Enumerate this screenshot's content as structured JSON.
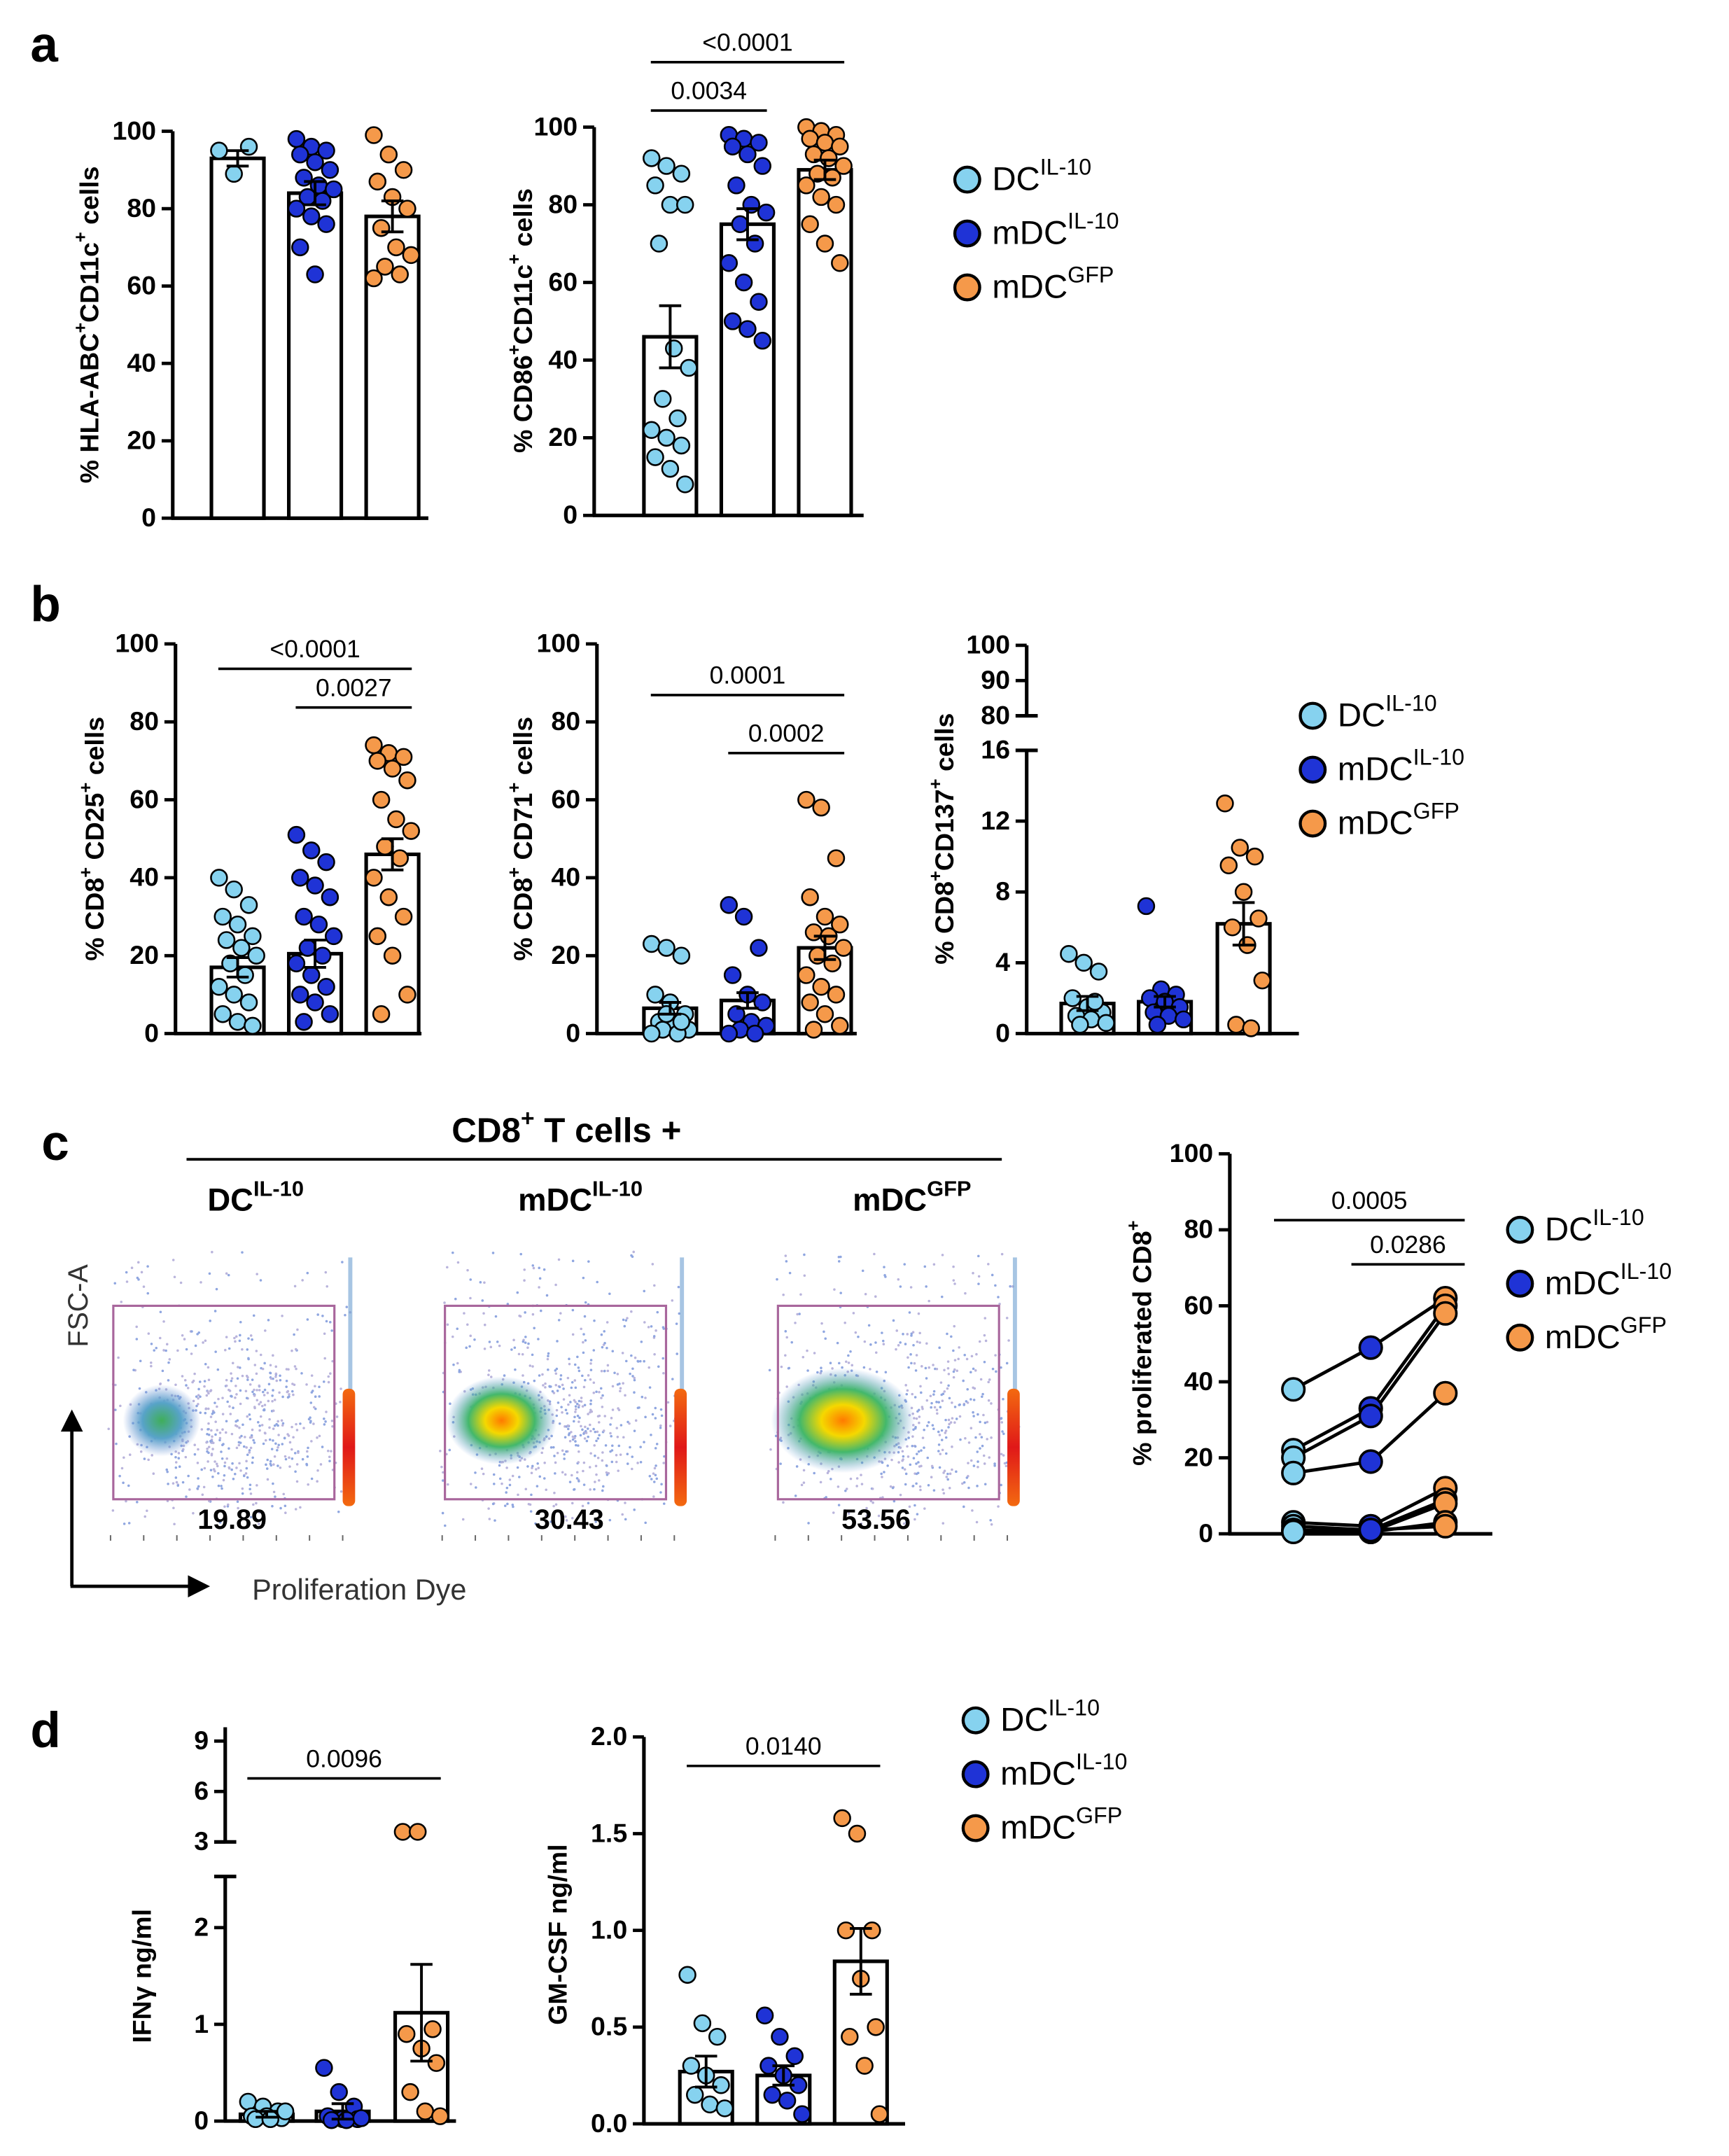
{
  "panels": [
    {
      "label": "a",
      "legend": [
        {
          "name": [
            "DC",
            {
              "sup": "IL-10"
            }
          ],
          "color": "#86d2ef"
        },
        {
          "name": [
            "mDC",
            {
              "sup": "IL-10"
            }
          ],
          "color": "#1f33d6"
        },
        {
          "name": [
            "mDC",
            {
              "sup": "GFP"
            }
          ],
          "color": "#f5994a"
        }
      ]
    },
    {
      "label": "b",
      "legend": [
        {
          "name": [
            "DC",
            {
              "sup": "IL-10"
            }
          ],
          "color": "#86d2ef"
        },
        {
          "name": [
            "mDC",
            {
              "sup": "IL-10"
            }
          ],
          "color": "#1f33d6"
        },
        {
          "name": [
            "mDC",
            {
              "sup": "GFP"
            }
          ],
          "color": "#f5994a"
        }
      ]
    },
    {
      "label": "c",
      "legend": [
        {
          "name": [
            "DC",
            {
              "sup": "IL-10"
            }
          ],
          "color": "#86d2ef"
        },
        {
          "name": [
            "mDC",
            {
              "sup": "IL-10"
            }
          ],
          "color": "#1f33d6"
        },
        {
          "name": [
            "mDC",
            {
              "sup": "GFP"
            }
          ],
          "color": "#f5994a"
        }
      ]
    },
    {
      "label": "d",
      "legend": [
        {
          "name": [
            "DC",
            {
              "sup": "IL-10"
            }
          ],
          "color": "#86d2ef"
        },
        {
          "name": [
            "mDC",
            {
              "sup": "IL-10"
            }
          ],
          "color": "#1f33d6"
        },
        {
          "name": [
            "mDC",
            {
              "sup": "GFP"
            }
          ],
          "color": "#f5994a"
        }
      ]
    }
  ],
  "flow": {
    "title": [
      "CD8",
      {
        "sup": "+"
      },
      " T cells +"
    ],
    "plots": [
      {
        "title": [
          "DC",
          {
            "sup": "IL-10"
          }
        ],
        "value": 19.89
      },
      {
        "title": [
          "mDC",
          {
            "sup": "IL-10"
          }
        ],
        "value": 30.43
      },
      {
        "title": [
          "mDC",
          {
            "sup": "GFP"
          }
        ],
        "value": 53.56
      }
    ],
    "ylabel": "FSC-A",
    "xlabel": "Proliferation Dye"
  },
  "chart_data": [
    {
      "type": "bar_scatter",
      "ylabel": [
        "% HLA-ABC",
        {
          "sup": "+"
        },
        "CD11c",
        {
          "sup": "+"
        },
        " cells"
      ],
      "ysegments": [
        {
          "ylim": [
            0,
            100
          ],
          "yticks": [
            0,
            20,
            40,
            60,
            80,
            100
          ]
        }
      ],
      "comparisons": [],
      "groups": [
        {
          "color": "#86d2ef",
          "mean": 93,
          "sem": 2,
          "values": [
            95,
            89,
            96
          ]
        },
        {
          "color": "#1f33d6",
          "mean": 84,
          "sem": 3,
          "values": [
            98,
            96,
            95,
            94,
            92,
            90,
            88,
            86,
            85,
            83,
            82,
            80,
            78,
            76,
            70,
            63
          ]
        },
        {
          "color": "#f5994a",
          "mean": 78,
          "sem": 4,
          "values": [
            99,
            94,
            90,
            87,
            83,
            80,
            75,
            70,
            68,
            65,
            63,
            62
          ]
        }
      ]
    },
    {
      "type": "bar_scatter",
      "ylabel": [
        "% CD86",
        {
          "sup": "+"
        },
        "CD11c",
        {
          "sup": "+"
        },
        " cells"
      ],
      "ysegments": [
        {
          "ylim": [
            0,
            100
          ],
          "yticks": [
            0,
            20,
            40,
            60,
            80,
            100
          ]
        }
      ],
      "comparisons": [
        "<0.0001",
        "0.0034"
      ],
      "groups": [
        {
          "color": "#86d2ef",
          "mean": 46,
          "sem": 8,
          "values": [
            92,
            90,
            88,
            85,
            80,
            80,
            70,
            43,
            38,
            30,
            25,
            22,
            20,
            18,
            15,
            12,
            8
          ]
        },
        {
          "color": "#1f33d6",
          "mean": 75,
          "sem": 4,
          "values": [
            98,
            97,
            96,
            95,
            93,
            90,
            85,
            80,
            78,
            75,
            70,
            65,
            60,
            55,
            50,
            48,
            45
          ]
        },
        {
          "color": "#f5994a",
          "mean": 89,
          "sem": 2.5,
          "values": [
            100,
            99,
            98,
            97,
            96,
            95,
            93,
            92,
            90,
            88,
            87,
            85,
            82,
            80,
            75,
            70,
            65
          ]
        }
      ]
    },
    {
      "type": "bar_scatter",
      "ylabel": [
        "% CD8",
        {
          "sup": "+"
        },
        " CD25",
        {
          "sup": "+"
        },
        " cells"
      ],
      "ysegments": [
        {
          "ylim": [
            0,
            100
          ],
          "yticks": [
            0,
            20,
            40,
            60,
            80,
            100
          ]
        }
      ],
      "comparisons": [
        "<0.0001",
        "0.0027"
      ],
      "groups": [
        {
          "color": "#86d2ef",
          "mean": 17,
          "sem": 2.5,
          "values": [
            40,
            37,
            33,
            30,
            28,
            25,
            24,
            22,
            20,
            18,
            15,
            12,
            10,
            8,
            5,
            3,
            2
          ]
        },
        {
          "color": "#1f33d6",
          "mean": 20.5,
          "sem": 3.5,
          "values": [
            51,
            47,
            44,
            40,
            38,
            35,
            30,
            28,
            25,
            22,
            20,
            18,
            15,
            12,
            10,
            8,
            5,
            3
          ]
        },
        {
          "color": "#f5994a",
          "mean": 46,
          "sem": 4,
          "values": [
            74,
            72,
            71,
            70,
            68,
            65,
            60,
            55,
            52,
            48,
            45,
            40,
            35,
            30,
            25,
            20,
            10,
            5
          ]
        }
      ]
    },
    {
      "type": "bar_scatter",
      "ylabel": [
        "% CD8",
        {
          "sup": "+"
        },
        " CD71",
        {
          "sup": "+"
        },
        " cells"
      ],
      "ysegments": [
        {
          "ylim": [
            0,
            100
          ],
          "yticks": [
            0,
            20,
            40,
            60,
            80,
            100
          ]
        }
      ],
      "comparisons": [
        "0.0001",
        "0.0002"
      ],
      "groups": [
        {
          "color": "#86d2ef",
          "mean": 6.5,
          "sem": 1.5,
          "values": [
            23,
            22,
            20,
            10,
            8,
            5,
            3,
            2,
            1,
            1,
            0,
            0,
            5,
            3
          ]
        },
        {
          "color": "#1f33d6",
          "mean": 8.5,
          "sem": 2,
          "values": [
            33,
            30,
            22,
            15,
            10,
            8,
            5,
            3,
            2,
            1,
            0,
            0
          ]
        },
        {
          "color": "#f5994a",
          "mean": 22,
          "sem": 3,
          "values": [
            60,
            58,
            45,
            35,
            30,
            28,
            26,
            25,
            22,
            20,
            18,
            15,
            12,
            10,
            8,
            5,
            2,
            1
          ]
        }
      ]
    },
    {
      "type": "bar_scatter",
      "ylabel": [
        "% CD8",
        {
          "sup": "+"
        },
        "CD137",
        {
          "sup": "+"
        },
        " cells"
      ],
      "ysegments": [
        {
          "ylim": [
            0,
            16
          ],
          "yticks": [
            0,
            4,
            8,
            12,
            16
          ]
        },
        {
          "ylim": [
            80,
            100
          ],
          "yticks": [
            80,
            90,
            100
          ]
        }
      ],
      "comparisons": [],
      "groups": [
        {
          "color": "#86d2ef",
          "mean": 1.7,
          "sem": 0.4,
          "values": [
            4.5,
            4,
            3.5,
            2,
            1.5,
            1.2,
            1,
            0.8,
            0.6,
            0.5,
            1.8
          ]
        },
        {
          "color": "#1f33d6",
          "mean": 1.8,
          "sem": 0.3,
          "values": [
            7.2,
            2.5,
            2.2,
            2,
            1.8,
            1.5,
            1.2,
            1,
            0.8,
            0.5
          ]
        },
        {
          "color": "#f5994a",
          "mean": 6.2,
          "sem": 1.2,
          "values": [
            13,
            10.5,
            10,
            9.5,
            8,
            6.5,
            6,
            5,
            3,
            0.5,
            0.3
          ]
        }
      ]
    },
    {
      "type": "paired",
      "ylabel": [
        "% proliferated CD8",
        {
          "sup": "+"
        }
      ],
      "ysegments": [
        {
          "ylim": [
            0,
            100
          ],
          "yticks": [
            0,
            20,
            40,
            60,
            80,
            100
          ]
        }
      ],
      "comparisons": [
        "0.0005",
        "0.0286"
      ],
      "groups": [
        {
          "color": "#86d2ef",
          "values": [
            38,
            22,
            20,
            16,
            3,
            2,
            1,
            1,
            0.5
          ]
        },
        {
          "color": "#1f33d6",
          "values": [
            49,
            33,
            31,
            19,
            2,
            1,
            0.5,
            0.5,
            1
          ]
        },
        {
          "color": "#f5994a",
          "values": [
            62,
            60,
            58,
            37,
            12,
            9,
            8,
            3,
            2
          ]
        }
      ]
    },
    {
      "type": "bar_scatter",
      "ylabel": [
        "IFNγ ng/ml"
      ],
      "ysegments": [
        {
          "ylim": [
            0,
            2
          ],
          "yticks": [
            0,
            1,
            2
          ]
        },
        {
          "ylim": [
            3,
            9
          ],
          "yticks": [
            3,
            6,
            9
          ]
        }
      ],
      "comparisons": [
        "0.0096"
      ],
      "groups": [
        {
          "color": "#86d2ef",
          "mean": 0.07,
          "sem": 0.03,
          "values": [
            0.2,
            0.15,
            0.1,
            0.05,
            0.05,
            0.03,
            0.02,
            0.02,
            0.1
          ]
        },
        {
          "color": "#1f33d6",
          "mean": 0.1,
          "sem": 0.08,
          "values": [
            0.55,
            0.3,
            0.15,
            0.05,
            0.02,
            0.02,
            0.01,
            0.01,
            0.03
          ]
        },
        {
          "color": "#f5994a",
          "mean": 1.12,
          "sem": 0.5,
          "values": [
            3.6,
            3.6,
            0.95,
            0.9,
            0.75,
            0.6,
            0.3,
            0.1,
            0.05
          ]
        }
      ]
    },
    {
      "type": "bar_scatter",
      "ylabel": [
        "GM-CSF ng/ml"
      ],
      "ysegments": [
        {
          "ylim": [
            0,
            2
          ],
          "yticks": [
            {
              "value": 0,
              "label": "0.0"
            },
            0.5,
            {
              "value": 1,
              "label": "1.0"
            },
            1.5,
            {
              "value": 2,
              "label": "2.0"
            }
          ]
        }
      ],
      "comparisons": [
        "0.0140"
      ],
      "groups": [
        {
          "color": "#86d2ef",
          "mean": 0.27,
          "sem": 0.08,
          "values": [
            0.77,
            0.52,
            0.45,
            0.3,
            0.25,
            0.2,
            0.15,
            0.1,
            0.08
          ]
        },
        {
          "color": "#1f33d6",
          "mean": 0.25,
          "sem": 0.05,
          "values": [
            0.56,
            0.45,
            0.35,
            0.3,
            0.25,
            0.2,
            0.15,
            0.12,
            0.05
          ]
        },
        {
          "color": "#f5994a",
          "mean": 0.84,
          "sem": 0.17,
          "values": [
            1.58,
            1.5,
            1.0,
            1.0,
            0.75,
            0.5,
            0.45,
            0.3,
            0.05
          ]
        }
      ]
    }
  ]
}
